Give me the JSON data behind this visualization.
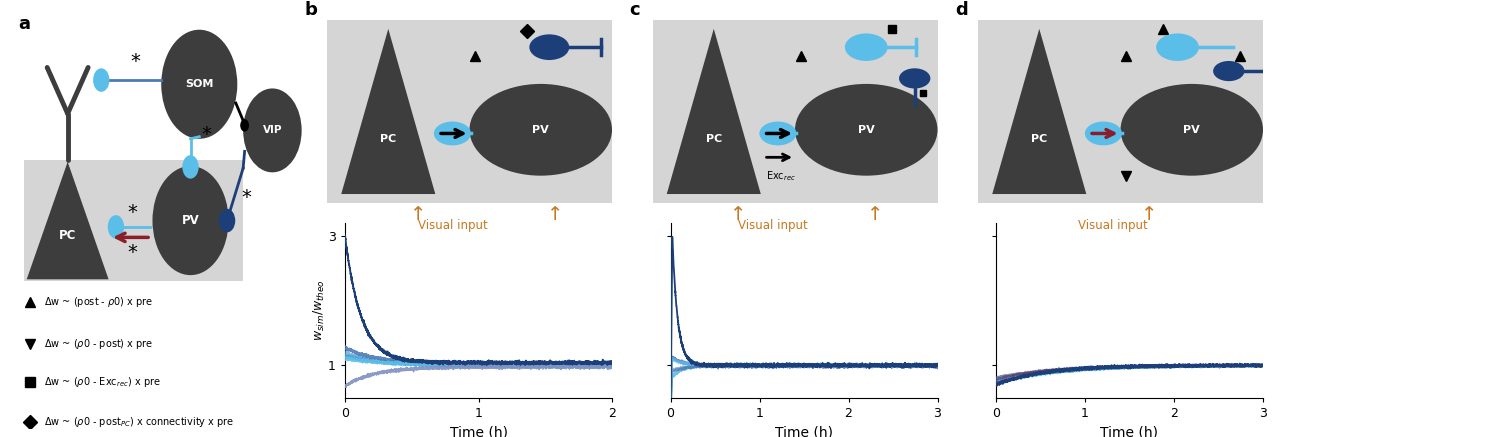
{
  "bg_color": "#ffffff",
  "schematic_bg": "#d5d5d5",
  "dark_node": "#3d3d3d",
  "light_blue": "#5bbee8",
  "mid_blue": "#4d7ab5",
  "dark_blue": "#1c3f7a",
  "purple_blue": "#8090c0",
  "red_color": "#8a1f2a",
  "orange_color": "#c87820",
  "panel_b_xlim": [
    0,
    2
  ],
  "panel_cd_xlim": [
    0,
    3
  ],
  "ylim": [
    0.5,
    3.2
  ],
  "yticks": [
    1,
    3
  ],
  "xlabel": "Time (h)"
}
